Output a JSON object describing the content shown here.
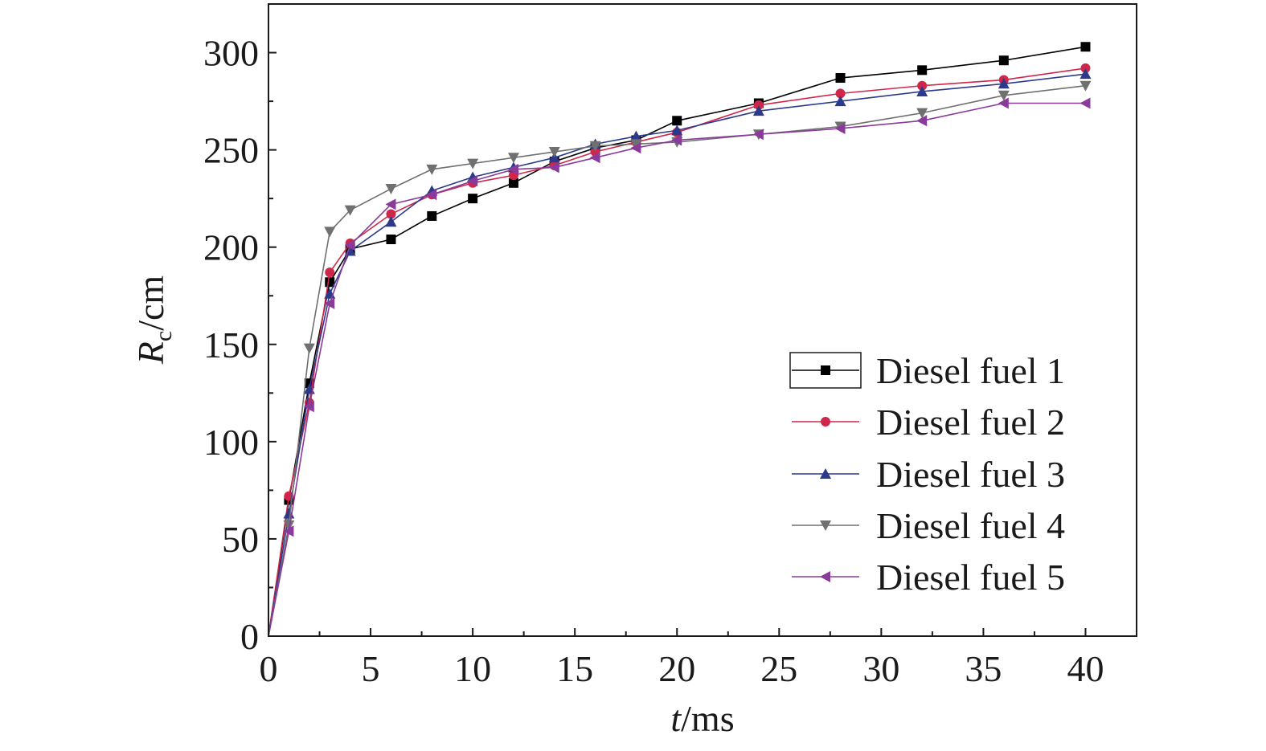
{
  "chart_data": {
    "type": "line",
    "xlabel_var": "t",
    "xlabel_unit": "/ms",
    "ylabel_var": "R",
    "ylabel_sub": "c",
    "ylabel_unit": "/cm",
    "xlim": [
      0,
      42.5
    ],
    "ylim": [
      0,
      325
    ],
    "xticks": [
      0,
      5,
      10,
      15,
      20,
      25,
      30,
      35,
      40
    ],
    "yticks": [
      0,
      50,
      100,
      150,
      200,
      250,
      300
    ],
    "grid": false,
    "legend_position": "bottom-right",
    "x": [
      0,
      1,
      2,
      3,
      4,
      6,
      8,
      10,
      12,
      14,
      16,
      18,
      20,
      24,
      28,
      32,
      36,
      40
    ],
    "series": [
      {
        "name": "Diesel fuel 1",
        "color": "#000000",
        "marker": "square",
        "values": [
          0,
          70,
          130,
          182,
          199,
          204,
          216,
          225,
          233,
          244,
          251,
          255,
          265,
          274,
          287,
          291,
          296,
          303
        ]
      },
      {
        "name": "Diesel fuel 2",
        "color": "#d0264a",
        "marker": "circle",
        "values": [
          0,
          72,
          120,
          187,
          202,
          217,
          227,
          233,
          237,
          242,
          249,
          254,
          259,
          273,
          279,
          283,
          286,
          292
        ]
      },
      {
        "name": "Diesel fuel 3",
        "color": "#2c3a8c",
        "marker": "triangle-up",
        "values": [
          0,
          63,
          127,
          176,
          198,
          213,
          229,
          236,
          241,
          246,
          253,
          257,
          260,
          270,
          275,
          280,
          284,
          289
        ]
      },
      {
        "name": "Diesel fuel 4",
        "color": "#707070",
        "marker": "triangle-down",
        "values": [
          0,
          57,
          148,
          208,
          219,
          230,
          240,
          243,
          246,
          249,
          252,
          253,
          254,
          258,
          262,
          269,
          278,
          283
        ]
      },
      {
        "name": "Diesel fuel 5",
        "color": "#8a3a9a",
        "marker": "triangle-left",
        "values": [
          0,
          54,
          118,
          171,
          201,
          222,
          227,
          234,
          240,
          241,
          246,
          251,
          255,
          258,
          261,
          265,
          274,
          274
        ]
      }
    ]
  }
}
